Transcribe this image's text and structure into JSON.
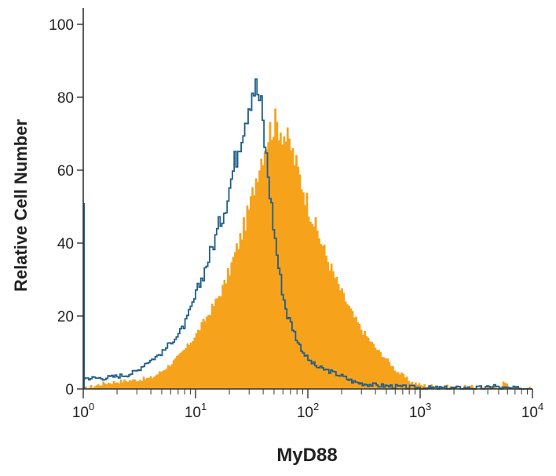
{
  "chart_data": {
    "type": "area",
    "title": "",
    "xlabel": "MyD88",
    "ylabel": "Relative Cell Number",
    "x_scale": "log",
    "xlim": [
      1,
      10000
    ],
    "ylim": [
      0,
      100
    ],
    "x_ticks": [
      {
        "value": 1,
        "base": "10",
        "exp": "0"
      },
      {
        "value": 10,
        "base": "10",
        "exp": "1"
      },
      {
        "value": 100,
        "base": "10",
        "exp": "2"
      },
      {
        "value": 1000,
        "base": "10",
        "exp": "3"
      },
      {
        "value": 10000,
        "base": "10",
        "exp": "4"
      }
    ],
    "y_ticks": [
      "0",
      "20",
      "40",
      "60",
      "80",
      "100"
    ],
    "grid": false,
    "legend": "none",
    "series": [
      {
        "style": "filled",
        "color": "#f7a21b",
        "points": [
          [
            1,
            0
          ],
          [
            1.5,
            1.5
          ],
          [
            2,
            2
          ],
          [
            3,
            2.5
          ],
          [
            4,
            3
          ],
          [
            5,
            5
          ],
          [
            6,
            7
          ],
          [
            7,
            9
          ],
          [
            8,
            11
          ],
          [
            9,
            13
          ],
          [
            10,
            15
          ],
          [
            12,
            19
          ],
          [
            15,
            24
          ],
          [
            18,
            29
          ],
          [
            20,
            33
          ],
          [
            25,
            42
          ],
          [
            30,
            50
          ],
          [
            35,
            60
          ],
          [
            40,
            66
          ],
          [
            45,
            71
          ],
          [
            50,
            73
          ],
          [
            55,
            72
          ],
          [
            60,
            70
          ],
          [
            70,
            66
          ],
          [
            80,
            60
          ],
          [
            90,
            55
          ],
          [
            100,
            50
          ],
          [
            120,
            43
          ],
          [
            150,
            35
          ],
          [
            180,
            29
          ],
          [
            200,
            26
          ],
          [
            250,
            20
          ],
          [
            300,
            16
          ],
          [
            400,
            11
          ],
          [
            500,
            8
          ],
          [
            600,
            5
          ],
          [
            700,
            3.5
          ],
          [
            800,
            2
          ],
          [
            900,
            1.5
          ],
          [
            1000,
            1
          ],
          [
            1500,
            0.6
          ],
          [
            2000,
            0.5
          ],
          [
            4000,
            0.4
          ],
          [
            5000,
            0.5
          ],
          [
            5500,
            2
          ],
          [
            6000,
            0.4
          ],
          [
            7000,
            0.2
          ],
          [
            10000,
            0
          ]
        ]
      },
      {
        "style": "outline",
        "color": "#1f5e8c",
        "points": [
          [
            1,
            3
          ],
          [
            1.5,
            3
          ],
          [
            2,
            3.5
          ],
          [
            2.5,
            4
          ],
          [
            3,
            5
          ],
          [
            3.5,
            7
          ],
          [
            4,
            8
          ],
          [
            5,
            10
          ],
          [
            6,
            13
          ],
          [
            7,
            15
          ],
          [
            8,
            18
          ],
          [
            9,
            22
          ],
          [
            10,
            26
          ],
          [
            12,
            33
          ],
          [
            15,
            42
          ],
          [
            18,
            50
          ],
          [
            20,
            56
          ],
          [
            22,
            62
          ],
          [
            25,
            70
          ],
          [
            28,
            76
          ],
          [
            30,
            80
          ],
          [
            32,
            83
          ],
          [
            35,
            82
          ],
          [
            38,
            77
          ],
          [
            40,
            70
          ],
          [
            45,
            55
          ],
          [
            50,
            42
          ],
          [
            55,
            32
          ],
          [
            60,
            25
          ],
          [
            65,
            20
          ],
          [
            70,
            18
          ],
          [
            80,
            13
          ],
          [
            90,
            10
          ],
          [
            100,
            8
          ],
          [
            120,
            6
          ],
          [
            150,
            5
          ],
          [
            200,
            3.5
          ],
          [
            250,
            2
          ],
          [
            300,
            1.5
          ],
          [
            400,
            1
          ],
          [
            500,
            0.8
          ],
          [
            700,
            0.5
          ],
          [
            1000,
            0.3
          ],
          [
            2000,
            0.2
          ],
          [
            4000,
            0.3
          ],
          [
            4500,
            1
          ],
          [
            5000,
            0.2
          ],
          [
            10000,
            0
          ]
        ]
      }
    ]
  }
}
